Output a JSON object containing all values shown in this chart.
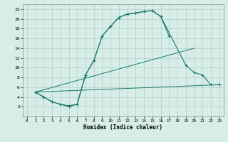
{
  "xlabel": "Humidex (Indice chaleur)",
  "xlim": [
    -0.5,
    23.5
  ],
  "ylim": [
    0,
    23
  ],
  "xticks": [
    0,
    1,
    2,
    3,
    4,
    5,
    6,
    7,
    8,
    9,
    10,
    11,
    12,
    13,
    14,
    15,
    16,
    17,
    18,
    19,
    20,
    21,
    22,
    23
  ],
  "yticks": [
    2,
    4,
    6,
    8,
    10,
    12,
    14,
    16,
    18,
    20,
    22
  ],
  "bg_color": "#d6ede8",
  "grid_color": "#b0cfc8",
  "line_color": "#1a7a6a",
  "line1_x": [
    1,
    2,
    3,
    4,
    5,
    6,
    7,
    8,
    9,
    10,
    11,
    12,
    13,
    14,
    15,
    16,
    17
  ],
  "line1_y": [
    5,
    4,
    3,
    2.5,
    2,
    2.5,
    8.5,
    11.5,
    16.5,
    18.5,
    20.3,
    21,
    21.2,
    21.5,
    21.7,
    20.5,
    16.5
  ],
  "line2_x": [
    1,
    2,
    3,
    4,
    5,
    6,
    7,
    8,
    9,
    10,
    11,
    12,
    13,
    14,
    15,
    16,
    19,
    20,
    21,
    22,
    23
  ],
  "line2_y": [
    5,
    4,
    3,
    2.5,
    2.2,
    2.5,
    8.5,
    11.5,
    16.5,
    18.5,
    20.3,
    21,
    21.2,
    21.5,
    21.7,
    20.5,
    10.5,
    9,
    8.5,
    6.5,
    6.5
  ],
  "line3_x": [
    1,
    23
  ],
  "line3_y": [
    5,
    6.5
  ],
  "line4_x": [
    1,
    20
  ],
  "line4_y": [
    5,
    14
  ]
}
